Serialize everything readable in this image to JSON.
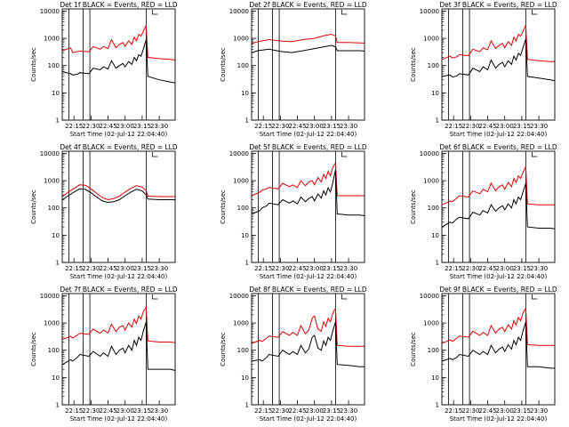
{
  "panels": [
    {
      "title": "Det 1f BLACK = Events, RED = LLD",
      "ylabel": "Counts/sec",
      "xlabel": "Start Time (02-Jul-12 22:04:40)"
    },
    {
      "title": "Det 2f BLACK = Events, RED = LLD",
      "ylabel": "Counts/sec",
      "xlabel": "Start Time (02-Jul-12 22:04:40)"
    },
    {
      "title": "Det 3f BLACK = Events, RED = LLD",
      "ylabel": "Counts/sec",
      "xlabel": "Start Time (02-Jul-12 22:04:40)"
    },
    {
      "title": "Det 4f BLACK = Events, RED = LLD",
      "ylabel": "Counts/sec",
      "xlabel": "Start Time (02-Jul-12 22:04:40)"
    },
    {
      "title": "Det 5f BLACK = Events, RED = LLD",
      "ylabel": "Counts/sec",
      "xlabel": "Start Time (02-Jul-12 22:04:40)"
    },
    {
      "title": "Det 6f BLACK = Events, RED = LLD",
      "ylabel": "Counts/sec",
      "xlabel": "Start Time (02-Jul-12 22:04:40)"
    },
    {
      "title": "Det 7f BLACK = Events, RED = LLD",
      "ylabel": "Counts/sec",
      "xlabel": "Start Time (02-Jul-12 22:04:40)"
    },
    {
      "title": "Det 8f BLACK = Events, RED = LLD",
      "ylabel": "Counts/sec",
      "xlabel": "Start Time (02-Jul-12 22:04:40)"
    },
    {
      "title": "Det 9f BLACK = Events, RED = LLD",
      "ylabel": "Counts/sec",
      "xlabel": "Start Time (02-Jul-12 22:04:40)"
    }
  ],
  "chart_data": {
    "type": "line",
    "layout": "3x3 grid of panels",
    "yscale": "log",
    "ylim": [
      1,
      12000
    ],
    "y_ticks": [
      "1",
      "10",
      "100",
      "1000",
      "10000"
    ],
    "x_ticks": [
      "22:15",
      "22:30",
      "22:45",
      "23:00",
      "23:15",
      "23:30"
    ],
    "x_tick_minutes": [
      15,
      30,
      45,
      60,
      75,
      90
    ],
    "xlim_minutes": [
      4.7,
      104
    ],
    "xlim_labels": [
      "22:04:40",
      "23:44"
    ],
    "vertical_markers_minutes": [
      10.5,
      23,
      29,
      78.5
    ],
    "series_colors": {
      "events": "#000000",
      "lld": "#e00000"
    },
    "series_by_panel": [
      {
        "events": {
          "x": [
            5,
            12,
            14,
            18,
            20,
            28,
            32,
            38,
            41,
            45,
            48,
            52,
            55,
            58,
            60,
            63,
            66,
            68,
            70,
            72,
            74,
            76,
            78.5,
            80,
            90,
            100,
            104
          ],
          "y": [
            60,
            50,
            45,
            48,
            55,
            50,
            80,
            70,
            90,
            75,
            150,
            80,
            100,
            120,
            90,
            140,
            110,
            200,
            150,
            250,
            220,
            400,
            900,
            40,
            30,
            25,
            23
          ]
        },
        "lld": {
          "x": [
            5,
            12,
            14,
            18,
            20,
            28,
            32,
            38,
            41,
            45,
            48,
            52,
            55,
            58,
            60,
            63,
            66,
            68,
            70,
            72,
            74,
            76,
            78.5,
            80,
            90,
            100,
            104
          ],
          "y": [
            350,
            450,
            300,
            320,
            340,
            320,
            500,
            400,
            500,
            420,
            900,
            450,
            600,
            700,
            500,
            800,
            600,
            1100,
            800,
            1400,
            1200,
            1800,
            3000,
            200,
            180,
            170,
            160
          ]
        }
      },
      {
        "events": {
          "x": [
            5,
            10,
            20,
            30,
            40,
            50,
            60,
            70,
            75,
            78.5,
            80,
            90,
            100,
            104
          ],
          "y": [
            300,
            350,
            400,
            330,
            300,
            350,
            420,
            500,
            550,
            480,
            350,
            350,
            350,
            340
          ]
        },
        "lld": {
          "x": [
            5,
            10,
            20,
            30,
            40,
            50,
            60,
            70,
            75,
            78.5,
            80,
            90,
            100,
            104
          ],
          "y": [
            650,
            750,
            900,
            800,
            750,
            900,
            1000,
            1300,
            1400,
            1200,
            700,
            700,
            680,
            670
          ]
        }
      },
      {
        "events": {
          "x": [
            5,
            12,
            14,
            18,
            20,
            28,
            32,
            38,
            41,
            45,
            48,
            52,
            55,
            58,
            60,
            63,
            66,
            68,
            70,
            72,
            74,
            76,
            78.5,
            80,
            90,
            100,
            104
          ],
          "y": [
            40,
            45,
            38,
            42,
            50,
            45,
            80,
            60,
            90,
            70,
            160,
            80,
            110,
            130,
            90,
            150,
            110,
            220,
            160,
            280,
            240,
            450,
            950,
            40,
            35,
            30,
            28
          ]
        },
        "lld": {
          "x": [
            5,
            12,
            14,
            18,
            20,
            28,
            32,
            38,
            41,
            45,
            48,
            52,
            55,
            58,
            60,
            63,
            66,
            68,
            70,
            72,
            74,
            76,
            78.5,
            80,
            90,
            100,
            104
          ],
          "y": [
            170,
            220,
            190,
            210,
            250,
            230,
            400,
            320,
            450,
            380,
            800,
            420,
            550,
            650,
            450,
            750,
            550,
            1100,
            800,
            1400,
            1200,
            1800,
            3000,
            170,
            150,
            140,
            140
          ]
        }
      },
      {
        "events": {
          "x": [
            5,
            10,
            15,
            20,
            25,
            30,
            35,
            40,
            45,
            50,
            55,
            60,
            65,
            70,
            75,
            78.5,
            80,
            90,
            100,
            104
          ],
          "y": [
            200,
            280,
            380,
            500,
            480,
            360,
            250,
            180,
            160,
            170,
            200,
            280,
            380,
            480,
            420,
            300,
            210,
            200,
            200,
            200
          ]
        },
        "lld": {
          "x": [
            5,
            10,
            15,
            20,
            25,
            30,
            35,
            40,
            45,
            50,
            55,
            60,
            65,
            70,
            75,
            78.5,
            80,
            90,
            100,
            104
          ],
          "y": [
            260,
            380,
            520,
            700,
            680,
            500,
            340,
            240,
            200,
            220,
            270,
            380,
            520,
            660,
            580,
            420,
            270,
            260,
            260,
            260
          ]
        }
      },
      {
        "events": {
          "x": [
            5,
            12,
            14,
            18,
            20,
            28,
            32,
            38,
            41,
            45,
            48,
            52,
            55,
            58,
            60,
            63,
            66,
            68,
            70,
            72,
            74,
            76,
            78.5,
            80,
            90,
            100,
            104
          ],
          "y": [
            60,
            80,
            100,
            120,
            150,
            130,
            200,
            150,
            180,
            140,
            250,
            170,
            220,
            260,
            180,
            320,
            230,
            420,
            300,
            550,
            380,
            800,
            2500,
            60,
            55,
            55,
            52
          ]
        },
        "lld": {
          "x": [
            5,
            12,
            14,
            18,
            20,
            28,
            32,
            38,
            41,
            45,
            48,
            52,
            55,
            58,
            60,
            63,
            66,
            68,
            70,
            72,
            74,
            76,
            78.5,
            80,
            90,
            100,
            104
          ],
          "y": [
            280,
            380,
            450,
            500,
            560,
            500,
            800,
            600,
            700,
            560,
            1000,
            650,
            900,
            1000,
            700,
            1300,
            900,
            1700,
            1200,
            2200,
            1500,
            3000,
            4500,
            280,
            280,
            280,
            280
          ]
        }
      },
      {
        "events": {
          "x": [
            5,
            12,
            14,
            18,
            20,
            28,
            32,
            38,
            41,
            45,
            48,
            52,
            55,
            58,
            60,
            63,
            66,
            68,
            70,
            72,
            74,
            76,
            78.5,
            80,
            90,
            100,
            104
          ],
          "y": [
            20,
            30,
            28,
            40,
            45,
            40,
            70,
            55,
            80,
            65,
            130,
            75,
            100,
            120,
            85,
            140,
            100,
            200,
            140,
            250,
            200,
            380,
            800,
            20,
            18,
            18,
            17
          ]
        },
        "lld": {
          "x": [
            5,
            12,
            14,
            18,
            20,
            28,
            32,
            38,
            41,
            45,
            48,
            52,
            55,
            58,
            60,
            63,
            66,
            68,
            70,
            72,
            74,
            76,
            78.5,
            80,
            90,
            100,
            104
          ],
          "y": [
            130,
            180,
            170,
            230,
            280,
            250,
            420,
            330,
            480,
            390,
            800,
            420,
            600,
            700,
            480,
            850,
            600,
            1200,
            850,
            1500,
            1200,
            2000,
            3200,
            140,
            130,
            130,
            130
          ]
        }
      },
      {
        "events": {
          "x": [
            5,
            12,
            14,
            18,
            20,
            28,
            32,
            38,
            41,
            45,
            48,
            52,
            55,
            58,
            60,
            63,
            66,
            68,
            70,
            72,
            74,
            76,
            78.5,
            80,
            90,
            100,
            104
          ],
          "y": [
            30,
            45,
            40,
            55,
            70,
            60,
            90,
            60,
            80,
            60,
            140,
            70,
            100,
            120,
            80,
            150,
            100,
            230,
            150,
            300,
            230,
            500,
            1100,
            20,
            20,
            20,
            18
          ]
        },
        "lld": {
          "x": [
            5,
            12,
            14,
            18,
            20,
            28,
            32,
            38,
            41,
            45,
            48,
            52,
            55,
            58,
            60,
            63,
            66,
            68,
            70,
            72,
            74,
            76,
            78.5,
            80,
            90,
            100,
            104
          ],
          "y": [
            250,
            320,
            280,
            360,
            420,
            380,
            600,
            420,
            550,
            430,
            900,
            480,
            700,
            800,
            550,
            1000,
            700,
            1400,
            950,
            1800,
            1400,
            2600,
            3800,
            220,
            200,
            200,
            190
          ]
        }
      },
      {
        "events": {
          "x": [
            5,
            12,
            14,
            18,
            20,
            28,
            32,
            38,
            41,
            45,
            48,
            52,
            55,
            58,
            60,
            63,
            66,
            68,
            70,
            72,
            74,
            76,
            78.5,
            80,
            90,
            100,
            104
          ],
          "y": [
            40,
            45,
            40,
            55,
            70,
            60,
            100,
            70,
            90,
            70,
            150,
            80,
            110,
            300,
            350,
            120,
            100,
            220,
            150,
            300,
            230,
            500,
            1100,
            30,
            28,
            25,
            25
          ]
        },
        "lld": {
          "x": [
            5,
            12,
            14,
            18,
            20,
            28,
            32,
            38,
            41,
            45,
            48,
            52,
            55,
            58,
            60,
            63,
            66,
            68,
            70,
            72,
            74,
            76,
            78.5,
            80,
            90,
            100,
            104
          ],
          "y": [
            180,
            230,
            210,
            280,
            330,
            300,
            480,
            350,
            450,
            350,
            800,
            400,
            550,
            1500,
            1800,
            600,
            500,
            1100,
            750,
            1500,
            1100,
            2200,
            3500,
            150,
            140,
            140,
            140
          ]
        }
      },
      {
        "events": {
          "x": [
            5,
            12,
            14,
            18,
            20,
            28,
            32,
            38,
            41,
            45,
            48,
            52,
            55,
            58,
            60,
            63,
            66,
            68,
            70,
            72,
            74,
            76,
            78.5,
            80,
            90,
            100,
            104
          ],
          "y": [
            40,
            50,
            45,
            55,
            70,
            60,
            100,
            70,
            90,
            70,
            150,
            80,
            110,
            130,
            90,
            160,
            110,
            230,
            160,
            300,
            230,
            500,
            1100,
            25,
            25,
            22,
            22
          ]
        },
        "lld": {
          "x": [
            5,
            12,
            14,
            18,
            20,
            28,
            32,
            38,
            41,
            45,
            48,
            52,
            55,
            58,
            60,
            63,
            66,
            68,
            70,
            72,
            74,
            76,
            78.5,
            80,
            90,
            100,
            104
          ],
          "y": [
            180,
            240,
            210,
            280,
            330,
            300,
            500,
            350,
            450,
            350,
            800,
            420,
            600,
            700,
            480,
            850,
            600,
            1200,
            850,
            1600,
            1200,
            2300,
            3500,
            160,
            150,
            150,
            150
          ]
        }
      }
    ]
  }
}
